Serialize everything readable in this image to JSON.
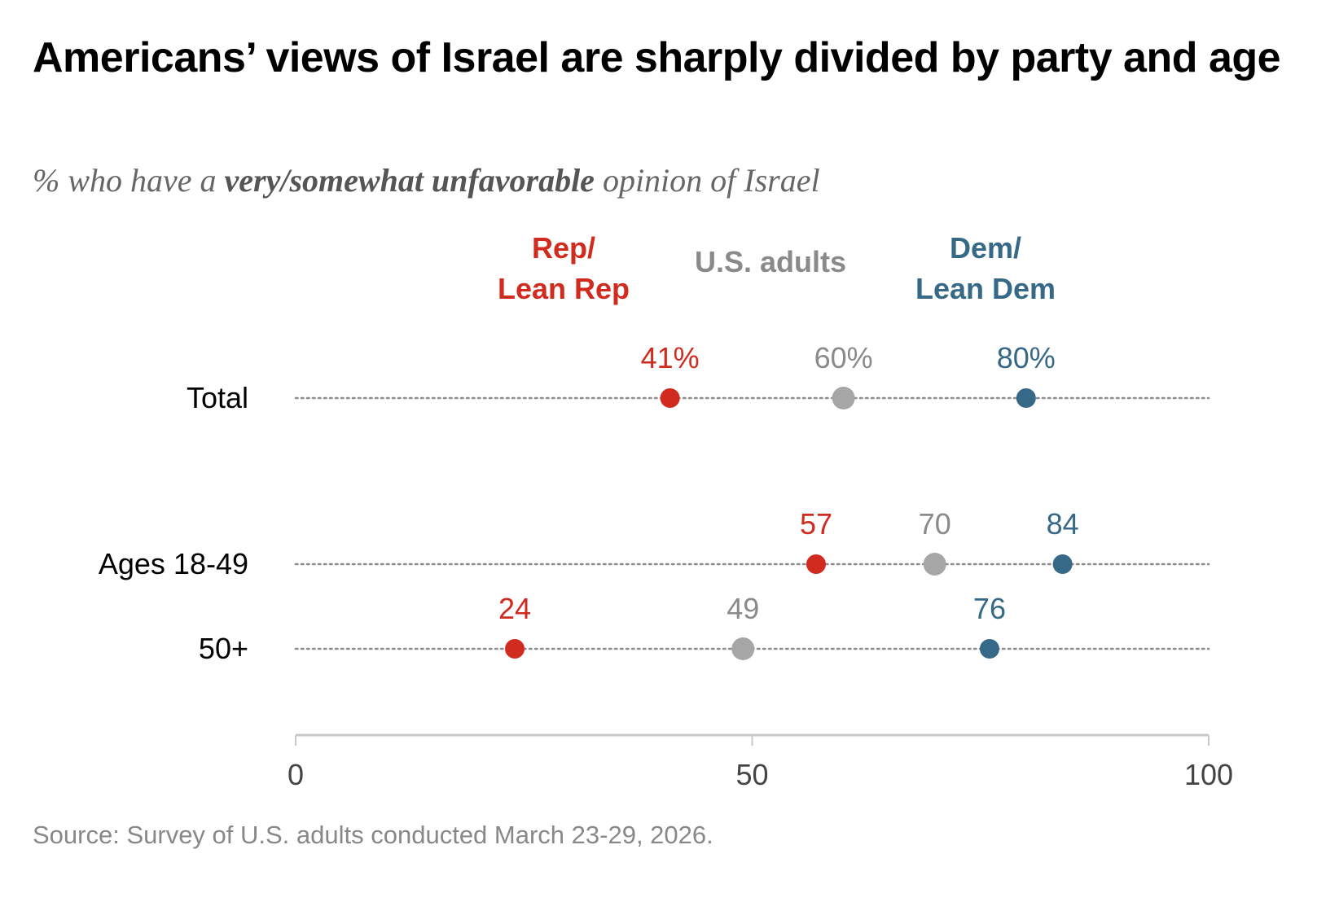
{
  "title": "Americans’ views of Israel are sharply divided by party and age",
  "subtitle": {
    "prefix": "% who have a ",
    "emphasis": "very/somewhat unfavorable",
    "suffix": " opinion of Israel"
  },
  "source": "Source: Survey of U.S. adults conducted March 23-29, 2026.",
  "chart_data": {
    "type": "scatter",
    "subtype": "dot-plot",
    "title": "Americans’ views of Israel are sharply divided by party and age",
    "xlabel": "",
    "ylabel": "",
    "xlim": [
      0,
      100
    ],
    "x_ticks": [
      0,
      50,
      100
    ],
    "grid": false,
    "legend_position": "top",
    "categories": [
      "Total",
      "Ages 18-49",
      "50+"
    ],
    "series": [
      {
        "name": "Rep/\nLean Rep",
        "name_lines": [
          "Rep/",
          "Lean Rep"
        ],
        "color": "#d12a1e",
        "values": [
          41,
          57,
          24
        ],
        "labels": [
          "41%",
          "57",
          "24"
        ]
      },
      {
        "name": "U.S. adults",
        "name_lines": [
          "U.S. adults"
        ],
        "color": "#a6a6a6",
        "label_color": "#8a8a8a",
        "values": [
          60,
          70,
          49
        ],
        "labels": [
          "60%",
          "70",
          "49"
        ]
      },
      {
        "name": "Dem/\nLean Dem",
        "name_lines": [
          "Dem/",
          "Lean Dem"
        ],
        "color": "#366888",
        "values": [
          80,
          84,
          76
        ],
        "labels": [
          "80%",
          "84",
          "76"
        ]
      }
    ]
  }
}
